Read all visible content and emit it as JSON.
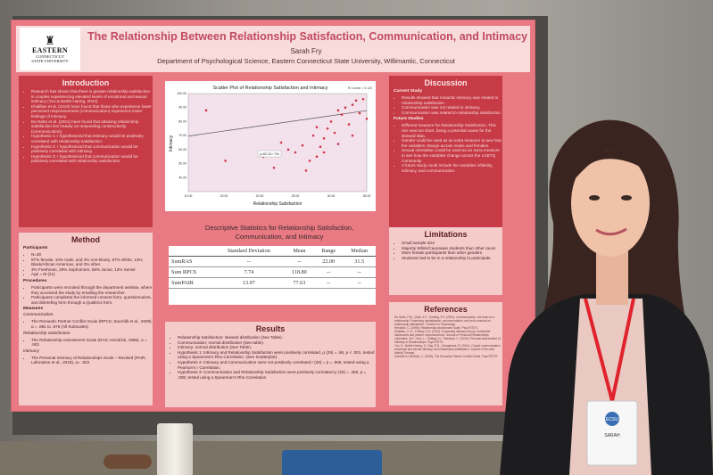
{
  "poster": {
    "logo": {
      "line1": "EASTERN",
      "line2": "CONNECTICUT",
      "line3": "STATE UNIVERSITY"
    },
    "title": "The Relationship Between Relationship Satisfaction, Communication, and Intimacy",
    "author": "Sarah Fry",
    "department": "Department of Psychological Science, Eastern Connecticut State University, Willimantic, Connecticut",
    "introduction": {
      "heading": "Introduction",
      "bullets": [
        "Research has shown that there is greater relationship satisfaction in couples experiencing elevated levels of emotional and sexual intimacy (Yoo & Bartle-Haring, 2014).",
        "Khalifian et al. (2019) have found that those who experience lower perceived responsiveness (communication) experience lower feelings of intimacy.",
        "De Netto et al. (2021) have found that attaining relationship satisfaction lies heavily on responding constructively (communication).",
        "Hypothesis 1: I hypothesized that intimacy would be positively correlated with relationship satisfaction.",
        "Hypothesis 2: I hypothesized that communication would be positively correlated with intimacy.",
        "Hypothesis 3: I hypothesized that communication would be positively correlated with relationship satisfaction."
      ]
    },
    "method": {
      "heading": "Method",
      "participants_label": "Participants",
      "participants": [
        "N=30",
        "87% female, 10% male, and 3% non-binary. 87% White, 13% Black/African American, and 3% other.",
        "3% Freshman, 29% Sophomore, 55% Junior, 13% Senior",
        "Age = M (21)"
      ],
      "procedures_label": "Procedures",
      "procedures": [
        "Participants were recruited through the department website, where they accessed the study by emailing the researcher.",
        "Participants completed the informed consent form, questionnaires, and debriefing form through a Qualtrics form."
      ],
      "measures_label": "Measures",
      "communication_label": "Communication",
      "communication": [
        "The Romantic Partner Conflict Scale (RPCS; Zacchilli et al., 2009), α = .881 to .975 (All Subscales)"
      ],
      "satisfaction_label": "Relationship Satisfaction",
      "satisfaction": [
        "The Relationship Assessment Scale (RAS; Hendrick, 1998), α = .902"
      ],
      "intimacy_label": "Intimacy",
      "intimacy": [
        "The Personal Intimacy of Relationships Scale – Revised (PAIR; Lafontaine et al., 2018), α= .923"
      ]
    },
    "scatter": {
      "title": "Scatter Plot of Relationship Satisfaction and Intimacy",
      "xlabel": "Relationship Satisfaction",
      "ylabel": "Intimacy",
      "r2": "R² Linear = 0.123",
      "fit_label": "y=62.31+.73x"
    },
    "chart_data": {
      "type": "scatter",
      "title": "Scatter Plot of Relationship Satisfaction and Intimacy",
      "xlabel": "Relationship Satisfaction",
      "ylabel": "Intimacy",
      "xlim": [
        10,
        35
      ],
      "ylim": [
        30,
        100
      ],
      "x_ticks": [
        "10.00",
        "15.00",
        "20.00",
        "25.00",
        "30.00",
        "35.00"
      ],
      "y_ticks": [
        "40.00",
        "50.00",
        "60.00",
        "70.00",
        "80.00",
        "90.00",
        "100.00"
      ],
      "points": [
        {
          "x": 12.5,
          "y": 88
        },
        {
          "x": 15.2,
          "y": 52
        },
        {
          "x": 20.5,
          "y": 55
        },
        {
          "x": 22.0,
          "y": 47
        },
        {
          "x": 23.0,
          "y": 65
        },
        {
          "x": 24.0,
          "y": 60
        },
        {
          "x": 25.0,
          "y": 58
        },
        {
          "x": 26.0,
          "y": 63
        },
        {
          "x": 27.0,
          "y": 52
        },
        {
          "x": 27.5,
          "y": 70
        },
        {
          "x": 28.0,
          "y": 55
        },
        {
          "x": 28.5,
          "y": 62
        },
        {
          "x": 29.0,
          "y": 68
        },
        {
          "x": 29.5,
          "y": 75
        },
        {
          "x": 30.0,
          "y": 80
        },
        {
          "x": 30.5,
          "y": 72
        },
        {
          "x": 31.0,
          "y": 88
        },
        {
          "x": 31.5,
          "y": 85
        },
        {
          "x": 32.0,
          "y": 90
        },
        {
          "x": 32.5,
          "y": 78
        },
        {
          "x": 33.0,
          "y": 92
        },
        {
          "x": 33.5,
          "y": 95
        },
        {
          "x": 34.0,
          "y": 86
        },
        {
          "x": 34.5,
          "y": 96
        },
        {
          "x": 35.0,
          "y": 82
        },
        {
          "x": 26.5,
          "y": 45
        },
        {
          "x": 29.0,
          "y": 58
        },
        {
          "x": 31.0,
          "y": 64
        },
        {
          "x": 33.0,
          "y": 70
        },
        {
          "x": 28.0,
          "y": 76
        }
      ],
      "fit": {
        "intercept": 62.31,
        "slope": 0.73
      }
    },
    "descriptive": {
      "title": "Descriptive Statistics for Relationship Satisfaction, Communication, and Intimacy",
      "headers": [
        "",
        "Standard Deviation",
        "Mean",
        "Range",
        "Median"
      ],
      "rows": [
        [
          "SumRAS",
          "--",
          "--",
          "22.00",
          "31.5"
        ],
        [
          "Sum RPCS",
          "7.74",
          "118.80",
          "--",
          "--"
        ],
        [
          "SumPAIR",
          "13.97",
          "77.63",
          "--",
          "--"
        ]
      ]
    },
    "results": {
      "heading": "Results",
      "bullets": [
        "Relationship Satisfaction: skewed distribution (See Table).",
        "Communication: normal distribution (See table).",
        "Intimacy: normal distribution (See Table).",
        "Hypothesis 1: Intimacy and Relationship Satisfaction were positively correlated, ρ (29) = .66, p < .001, tested using a Spearman's Rho Correlation. (See Scatterplot).",
        "Hypothesis 2: Intimacy and Communication were not positively correlated r (29) = p = .665, tested using a Pearson's r Correlation.",
        "Hypothesis 3: Communication and Relationship Satisfaction were positively correlated ρ (29) = .465, p = .008, tested using a Spearman's Rho Correlation"
      ]
    },
    "discussion": {
      "heading": "Discussion",
      "current_label": "Current Study",
      "current": [
        "Results showed that romantic intimacy was related to relationship satisfaction.",
        "Communication was not related to intimacy.",
        "Communication was related to relationship satisfaction."
      ],
      "future_label": "Future Studies",
      "future": [
        "Different measure for Relationship Satisfaction. This one was too short, being a potential cause for the skewed data.",
        "Gender could be used as an extra measure to see how the variables change across males and females.",
        "Sexual orientation could be used as an extra measure to see how the variables change across the LGBTQ community.",
        "A future study could include the variables infidelity, intimacy, and communication."
      ]
    },
    "limitations": {
      "heading": "Limitations",
      "bullets": [
        "Small sample size",
        "Majority White/Caucasian students than other races",
        "More female participants than other genders",
        "Students had to be in a relationship to participate"
      ]
    },
    "references": {
      "heading": "References",
      "items": [
        "De Netto, P.M., Quek, K.F., Golding, K.F. (2021). Communication, the heart of a relationship: Examining capitalization, accommodation, and self-construal on relationship satisfaction. Frontiers in Psychology.",
        "Hendrick, C. (1998). Relationship Assessment Scale. PsycTESTS.",
        "Khalifian, C. E., & Barry, R.A. (2019). Expanding intimacy theory: Vulnerable disclosures and partner responsiveness. Journal of Personal Relationships.",
        "Lafontaine, M.F., Azzi, L., Gabbay, N., Therriault, C. (2018). Personal Assessment of Intimacy in Relationships. PsycTESTS.",
        "Yoo, H., Bartle-Haring, S., Day, R.D., Gangamma, R. (2014). Couple communication, emotional and sexual intimacy, and relationship satisfaction. Journal of Sex and Marital Therapy.",
        "Zacchilli & Hendrick, C. (2009). The Romantic Partner Conflict Scale. PsycTESTS."
      ]
    }
  },
  "badge": {
    "logo_text": "ECSU",
    "name": "SARAH"
  }
}
